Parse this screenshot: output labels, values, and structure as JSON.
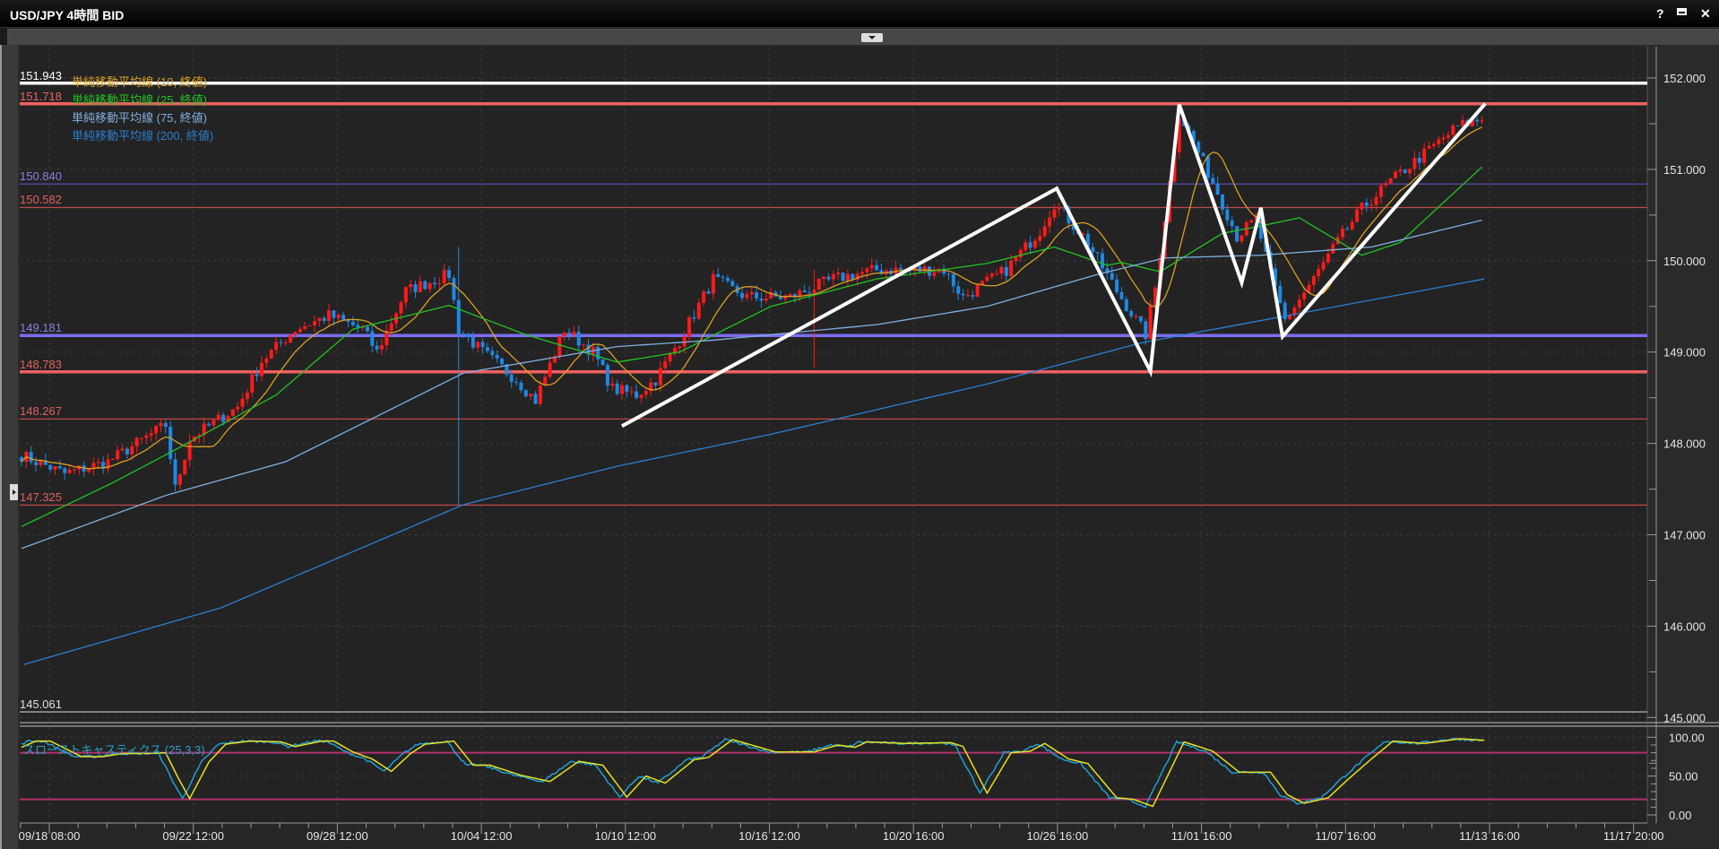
{
  "window": {
    "title": "USD/JPY 4時間 BID",
    "help_label": "?",
    "icons": [
      "help-icon",
      "restore-icon",
      "close-icon"
    ]
  },
  "chart_data": {
    "type": "candlestick",
    "symbol": "USD/JPY",
    "timeframe": "4時間",
    "side": "BID",
    "x_unit": "4-hour bar index",
    "x_tick_labels": [
      "09/18 08:00",
      "09/22 12:00",
      "09/28 12:00",
      "10/04 12:00",
      "10/10 12:00",
      "10/16 12:00",
      "10/20 16:00",
      "10/26 16:00",
      "11/01 16:00",
      "11/07 16:00",
      "11/13 16:00",
      "11/17 20:00"
    ],
    "y_tick_labels": [
      "152.000",
      "151.000",
      "150.000",
      "149.000",
      "148.000",
      "147.000",
      "146.000",
      "145.000"
    ],
    "y_ticks": [
      152,
      151,
      150,
      149,
      148,
      147,
      146,
      145
    ],
    "ylim": [
      144.95,
      152.34
    ],
    "grid": true,
    "colors": {
      "up": "#ff1a1a",
      "down": "#1e88e5",
      "background": "#232323"
    },
    "price_path": [
      [
        0,
        147.87
      ],
      [
        9,
        147.67
      ],
      [
        18,
        147.8
      ],
      [
        30,
        148.2
      ],
      [
        32,
        147.5
      ],
      [
        35,
        148.05
      ],
      [
        45,
        148.4
      ],
      [
        50,
        148.9
      ],
      [
        57,
        149.25
      ],
      [
        64,
        149.4
      ],
      [
        71,
        149.25
      ],
      [
        74,
        149.0
      ],
      [
        80,
        149.67
      ],
      [
        89,
        149.85
      ],
      [
        91,
        149.25
      ],
      [
        96,
        149.0
      ],
      [
        103,
        148.7
      ],
      [
        107,
        148.47
      ],
      [
        113,
        149.25
      ],
      [
        119,
        149.0
      ],
      [
        123,
        148.6
      ],
      [
        128,
        148.53
      ],
      [
        132,
        148.7
      ],
      [
        137,
        149.13
      ],
      [
        144,
        149.8
      ],
      [
        151,
        149.6
      ],
      [
        160,
        149.6
      ],
      [
        169,
        149.8
      ],
      [
        178,
        149.9
      ],
      [
        192,
        149.9
      ],
      [
        196,
        149.6
      ],
      [
        205,
        149.9
      ],
      [
        212,
        150.33
      ],
      [
        215,
        150.63
      ],
      [
        221,
        150.27
      ],
      [
        228,
        149.67
      ],
      [
        234,
        149.19
      ],
      [
        236,
        149.7
      ],
      [
        241,
        151.62
      ],
      [
        244,
        151.29
      ],
      [
        249,
        150.75
      ],
      [
        253,
        150.27
      ],
      [
        257,
        150.45
      ],
      [
        260,
        149.85
      ],
      [
        263,
        149.35
      ],
      [
        269,
        149.8
      ],
      [
        274,
        150.21
      ],
      [
        279,
        150.57
      ],
      [
        285,
        150.87
      ],
      [
        292,
        151.17
      ],
      [
        299,
        151.47
      ],
      [
        304,
        151.55
      ]
    ],
    "spikes": [
      {
        "bar": 91,
        "high": 150.15,
        "low": 147.33
      },
      {
        "bar": 165,
        "high": 149.9,
        "low": 148.83
      }
    ],
    "moving_averages": [
      {
        "label": "単純移動平均線 (10, 終値)",
        "period": 10,
        "color": "#d9a020"
      },
      {
        "label": "単純移動平均線 (25, 終値)",
        "period": 25,
        "color": "#22c322",
        "points": [
          [
            0,
            147.09
          ],
          [
            19,
            147.57
          ],
          [
            32,
            147.93
          ],
          [
            53,
            148.53
          ],
          [
            69,
            149.25
          ],
          [
            89,
            149.51
          ],
          [
            105,
            149.19
          ],
          [
            124,
            148.89
          ],
          [
            137,
            149.0
          ],
          [
            156,
            149.5
          ],
          [
            178,
            149.8
          ],
          [
            201,
            149.97
          ],
          [
            215,
            150.15
          ],
          [
            226,
            149.95
          ],
          [
            229,
            149.98
          ],
          [
            237,
            149.88
          ],
          [
            250,
            150.3
          ],
          [
            258,
            150.38
          ],
          [
            266,
            150.47
          ],
          [
            279,
            150.06
          ],
          [
            287,
            150.2
          ],
          [
            304.5,
            151.05
          ]
        ]
      },
      {
        "label": "単純移動平均線 (75, 終値)",
        "period": 75,
        "color": "#7fb0e0",
        "points": [
          [
            0,
            146.85
          ],
          [
            30,
            147.43
          ],
          [
            55,
            147.8
          ],
          [
            76,
            148.35
          ],
          [
            92,
            148.77
          ],
          [
            124,
            149.06
          ],
          [
            144,
            149.13
          ],
          [
            178,
            149.3
          ],
          [
            201,
            149.5
          ],
          [
            224,
            149.85
          ],
          [
            238,
            150.03
          ],
          [
            258,
            150.06
          ],
          [
            281,
            150.15
          ],
          [
            304.5,
            150.45
          ]
        ]
      },
      {
        "label": "単純移動平均線 (200, 終値)",
        "period": 200,
        "color": "#2a7fd0",
        "points": [
          [
            0.5,
            145.58
          ],
          [
            41.5,
            146.2
          ],
          [
            92,
            147.33
          ],
          [
            124,
            147.75
          ],
          [
            156,
            148.1
          ],
          [
            201,
            148.65
          ],
          [
            233,
            149.1
          ],
          [
            304.5,
            149.8
          ]
        ]
      }
    ],
    "horizontal_lines": [
      {
        "label": "151.943",
        "price": 151.943,
        "color": "#ffffff",
        "emphasis": true
      },
      {
        "label": "151.718",
        "price": 151.718,
        "color": "#f06060",
        "emphasis": true
      },
      {
        "label": "150.840",
        "price": 150.84,
        "color": "#5c54c0",
        "label_color": "#8a80e0",
        "emphasis": false
      },
      {
        "label": "150.582",
        "price": 150.582,
        "color": "#c04848",
        "label_color": "#e06060",
        "emphasis": false
      },
      {
        "label": "149.181",
        "price": 149.181,
        "color": "#7b6cf0",
        "label_color": "#8a80e0",
        "emphasis": true
      },
      {
        "label": "148.783",
        "price": 148.783,
        "color": "#f06060",
        "label_color": "#e06060",
        "emphasis": true
      },
      {
        "label": "148.267",
        "price": 148.267,
        "color": "#c04848",
        "label_color": "#e06060",
        "emphasis": false
      },
      {
        "label": "147.325",
        "price": 147.325,
        "color": "#c04848",
        "label_color": "#e06060",
        "emphasis": false
      },
      {
        "label": "145.061",
        "price": 145.061,
        "color": "#c8c8c8",
        "label_color": "#e0e0e0",
        "emphasis": false
      }
    ],
    "drawings": [
      {
        "type": "polyline",
        "color": "#ffffff",
        "points": [
          [
            125,
            148.19
          ],
          [
            215.5,
            150.79
          ],
          [
            235,
            148.79
          ],
          [
            241,
            151.71
          ],
          [
            254,
            149.76
          ],
          [
            258,
            150.58
          ],
          [
            262.5,
            149.17
          ],
          [
            304.7,
            151.72
          ]
        ]
      }
    ],
    "stochastic": {
      "label": "スローストキャスティクス (25,3,3)",
      "levels": [
        80,
        20
      ],
      "level_color": "#b0306a",
      "k_color": "#1fa0d0",
      "d_color": "#e8e020",
      "y_tick_labels": [
        "100.00",
        "50.00",
        "0.00"
      ],
      "y_ticks": [
        100,
        50,
        0
      ],
      "d_points": [
        [
          0,
          87
        ],
        [
          3,
          95
        ],
        [
          6,
          95
        ],
        [
          12.5,
          75
        ],
        [
          17,
          75
        ],
        [
          21,
          79
        ],
        [
          27,
          79
        ],
        [
          30,
          80
        ],
        [
          32.5,
          49
        ],
        [
          35,
          21
        ],
        [
          39,
          68
        ],
        [
          42.5,
          91
        ],
        [
          47.5,
          95
        ],
        [
          54,
          94
        ],
        [
          57,
          88
        ],
        [
          62.5,
          95
        ],
        [
          65,
          95
        ],
        [
          69,
          81
        ],
        [
          73,
          72
        ],
        [
          77,
          56
        ],
        [
          81,
          79
        ],
        [
          84,
          91
        ],
        [
          90,
          95
        ],
        [
          94,
          64
        ],
        [
          97.5,
          64
        ],
        [
          104,
          51
        ],
        [
          110,
          43
        ],
        [
          116,
          69
        ],
        [
          121,
          64
        ],
        [
          126,
          23
        ],
        [
          130,
          50
        ],
        [
          134,
          41
        ],
        [
          140,
          71
        ],
        [
          143,
          74
        ],
        [
          148,
          97
        ],
        [
          157,
          81
        ],
        [
          165,
          81
        ],
        [
          170,
          90
        ],
        [
          173.5,
          87
        ],
        [
          176,
          94
        ],
        [
          184,
          92
        ],
        [
          193.5,
          93
        ],
        [
          196,
          88
        ],
        [
          201,
          28
        ],
        [
          206,
          80
        ],
        [
          210,
          82
        ],
        [
          213,
          92
        ],
        [
          218,
          72
        ],
        [
          222,
          66
        ],
        [
          228,
          22
        ],
        [
          231.5,
          20
        ],
        [
          235.5,
          11
        ],
        [
          242,
          94
        ],
        [
          248,
          82
        ],
        [
          253.5,
          55
        ],
        [
          260,
          55
        ],
        [
          263.5,
          26
        ],
        [
          267,
          15
        ],
        [
          272,
          22
        ],
        [
          276,
          45
        ],
        [
          281,
          72
        ],
        [
          285.5,
          95
        ],
        [
          292,
          92
        ],
        [
          299.5,
          98
        ],
        [
          304.5,
          96
        ]
      ]
    }
  }
}
